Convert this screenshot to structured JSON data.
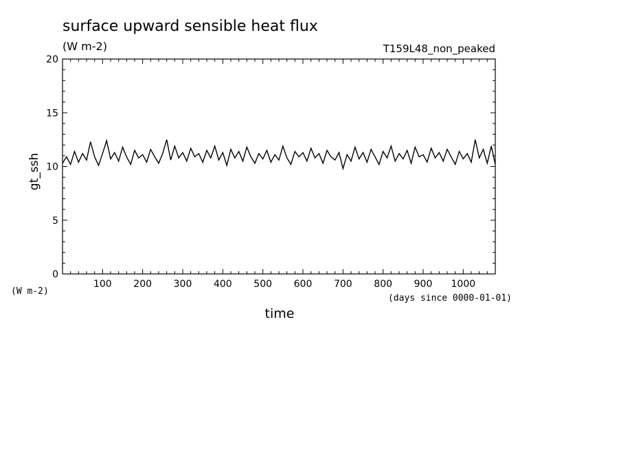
{
  "chart_data": {
    "type": "line",
    "title": "surface upward sensible heat flux",
    "subtitle": "(W m-2)",
    "run_label": "T159L48_non_peaked",
    "xlabel": "time",
    "x_units": "(days since 0000-01-01)",
    "ylabel": "gt_ssh",
    "y_units": "(W m-2)",
    "xlim": [
      0,
      1080
    ],
    "ylim": [
      0,
      20
    ],
    "x_ticks": [
      100,
      200,
      300,
      400,
      500,
      600,
      700,
      800,
      900,
      1000
    ],
    "y_ticks": [
      0,
      5,
      10,
      15,
      20
    ],
    "series": [
      {
        "x": [
          0,
          10,
          20,
          30,
          40,
          50,
          60,
          70,
          80,
          90,
          100,
          110,
          120,
          130,
          140,
          150,
          160,
          170,
          180,
          190,
          200,
          210,
          220,
          230,
          240,
          250,
          260,
          270,
          280,
          290,
          300,
          310,
          320,
          330,
          340,
          350,
          360,
          370,
          380,
          390,
          400,
          410,
          420,
          430,
          440,
          450,
          460,
          470,
          480,
          490,
          500,
          510,
          520,
          530,
          540,
          550,
          560,
          570,
          580,
          590,
          600,
          610,
          620,
          630,
          640,
          650,
          660,
          670,
          680,
          690,
          700,
          710,
          720,
          730,
          740,
          750,
          760,
          770,
          780,
          790,
          800,
          810,
          820,
          830,
          840,
          850,
          860,
          870,
          880,
          890,
          900,
          910,
          920,
          930,
          940,
          950,
          960,
          970,
          980,
          990,
          1000,
          1010,
          1020,
          1030,
          1040,
          1050,
          1060,
          1070,
          1080
        ],
        "y": [
          10.3,
          10.9,
          10.2,
          11.4,
          10.4,
          11.2,
          10.6,
          12.3,
          10.9,
          10.1,
          11.2,
          12.4,
          10.7,
          11.3,
          10.5,
          11.8,
          10.9,
          10.2,
          11.5,
          10.8,
          11.1,
          10.4,
          11.6,
          10.9,
          10.3,
          11.2,
          12.5,
          10.6,
          11.9,
          10.8,
          11.3,
          10.5,
          11.7,
          10.9,
          11.2,
          10.4,
          11.5,
          10.8,
          11.9,
          10.6,
          11.3,
          10.1,
          11.6,
          10.8,
          11.4,
          10.5,
          11.8,
          10.9,
          10.3,
          11.2,
          10.7,
          11.5,
          10.4,
          11.1,
          10.6,
          11.9,
          10.8,
          10.2,
          11.4,
          10.9,
          11.3,
          10.5,
          11.7,
          10.8,
          11.2,
          10.3,
          11.5,
          10.9,
          10.6,
          11.3,
          9.8,
          11.1,
          10.5,
          11.8,
          10.7,
          11.3,
          10.4,
          11.6,
          10.9,
          10.2,
          11.4,
          10.8,
          11.9,
          10.5,
          11.2,
          10.7,
          11.5,
          10.3,
          11.8,
          10.9,
          11.1,
          10.4,
          11.7,
          10.8,
          11.3,
          10.5,
          11.6,
          10.9,
          10.2,
          11.4,
          10.7,
          11.2,
          10.4,
          12.5,
          10.8,
          11.6,
          10.3,
          11.9,
          10.2
        ]
      }
    ]
  }
}
